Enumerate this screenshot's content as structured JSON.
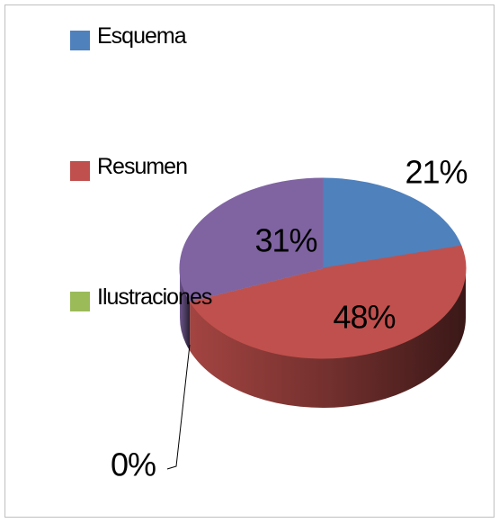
{
  "chart_data": {
    "type": "pie3d",
    "categories": [
      "Esquema",
      "Resumen",
      "Ilustraciones",
      null
    ],
    "values": [
      21,
      48,
      0,
      31
    ],
    "value_labels": [
      "21%",
      "48%",
      "0%",
      "31%"
    ],
    "colors": [
      "#4f81bd",
      "#c0504d",
      "#9bbb59",
      "#8064a2"
    ],
    "legend": "left"
  }
}
